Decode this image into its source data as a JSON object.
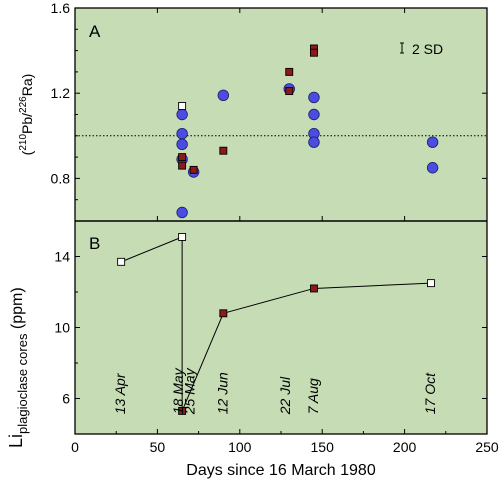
{
  "chart_data": [
    {
      "panel": "A",
      "type": "scatter",
      "ylabel": "(210Pb/226Ra)",
      "ylabel_parts": {
        "open": "(",
        "sup1": "210",
        "mid": "Pb/",
        "sup2": "226",
        "end": "Ra)"
      },
      "ylim": [
        0.6,
        1.6
      ],
      "yticks": [
        0.8,
        1.2,
        1.6
      ],
      "reference_line": 1.0,
      "error_bar_label": "2 SD",
      "series": [
        {
          "marker": "circle",
          "color": "#4a4de0",
          "x": [
            65,
            65,
            65,
            65,
            65,
            72,
            90,
            130,
            145,
            145,
            145,
            145,
            217,
            217
          ],
          "y": [
            1.1,
            1.01,
            0.96,
            0.89,
            0.64,
            0.83,
            1.19,
            1.22,
            1.18,
            1.1,
            1.01,
            0.97,
            0.97,
            0.85
          ]
        },
        {
          "marker": "filled-square",
          "color": "#8b1a1a",
          "x": [
            65,
            65,
            72,
            90,
            130,
            130,
            145,
            145
          ],
          "y": [
            0.9,
            0.86,
            0.84,
            0.93,
            1.3,
            1.21,
            1.41,
            1.39
          ]
        },
        {
          "marker": "open-square",
          "color": "#ffffff",
          "x": [
            65
          ],
          "y": [
            1.14
          ]
        }
      ]
    },
    {
      "panel": "B",
      "type": "line",
      "ylabel_main": "Li",
      "ylabel_sub": "plagioclase cores",
      "ylabel_unit": " (ppm)",
      "ylim": [
        4,
        16
      ],
      "yticks": [
        6,
        10,
        14
      ],
      "xlabel": "Days since 16 March 1980",
      "xlim": [
        0,
        250
      ],
      "xticks": [
        0,
        50,
        100,
        150,
        200,
        250
      ],
      "series": [
        {
          "marker": "open-square",
          "color": "#ffffff",
          "x": [
            28,
            65,
            216
          ],
          "y": [
            13.7,
            15.1,
            12.5
          ]
        },
        {
          "marker": "filled-square",
          "color": "#8b1a1a",
          "x": [
            65,
            90,
            145
          ],
          "y": [
            5.3,
            10.8,
            12.2
          ]
        }
      ],
      "connections": [
        {
          "from": [
            28,
            13.7
          ],
          "to": [
            65,
            15.1
          ]
        },
        {
          "from": [
            65,
            15.1
          ],
          "to": [
            65,
            5.3
          ]
        },
        {
          "from": [
            65,
            5.3
          ],
          "to": [
            90,
            10.8
          ]
        },
        {
          "from": [
            90,
            10.8
          ],
          "to": [
            145,
            12.2
          ]
        },
        {
          "from": [
            145,
            12.2
          ],
          "to": [
            216,
            12.5
          ]
        }
      ],
      "annotations": [
        {
          "text": "13 Apr",
          "x": 28
        },
        {
          "text": "18 May",
          "x": 63
        },
        {
          "text": "25 May",
          "x": 70
        },
        {
          "text": "12 Jun",
          "x": 90
        },
        {
          "text": "22 Jul",
          "x": 128
        },
        {
          "text": "7 Aug",
          "x": 145
        },
        {
          "text": "17 Oct",
          "x": 216
        }
      ]
    }
  ],
  "panel_background": "#c5dcb5"
}
